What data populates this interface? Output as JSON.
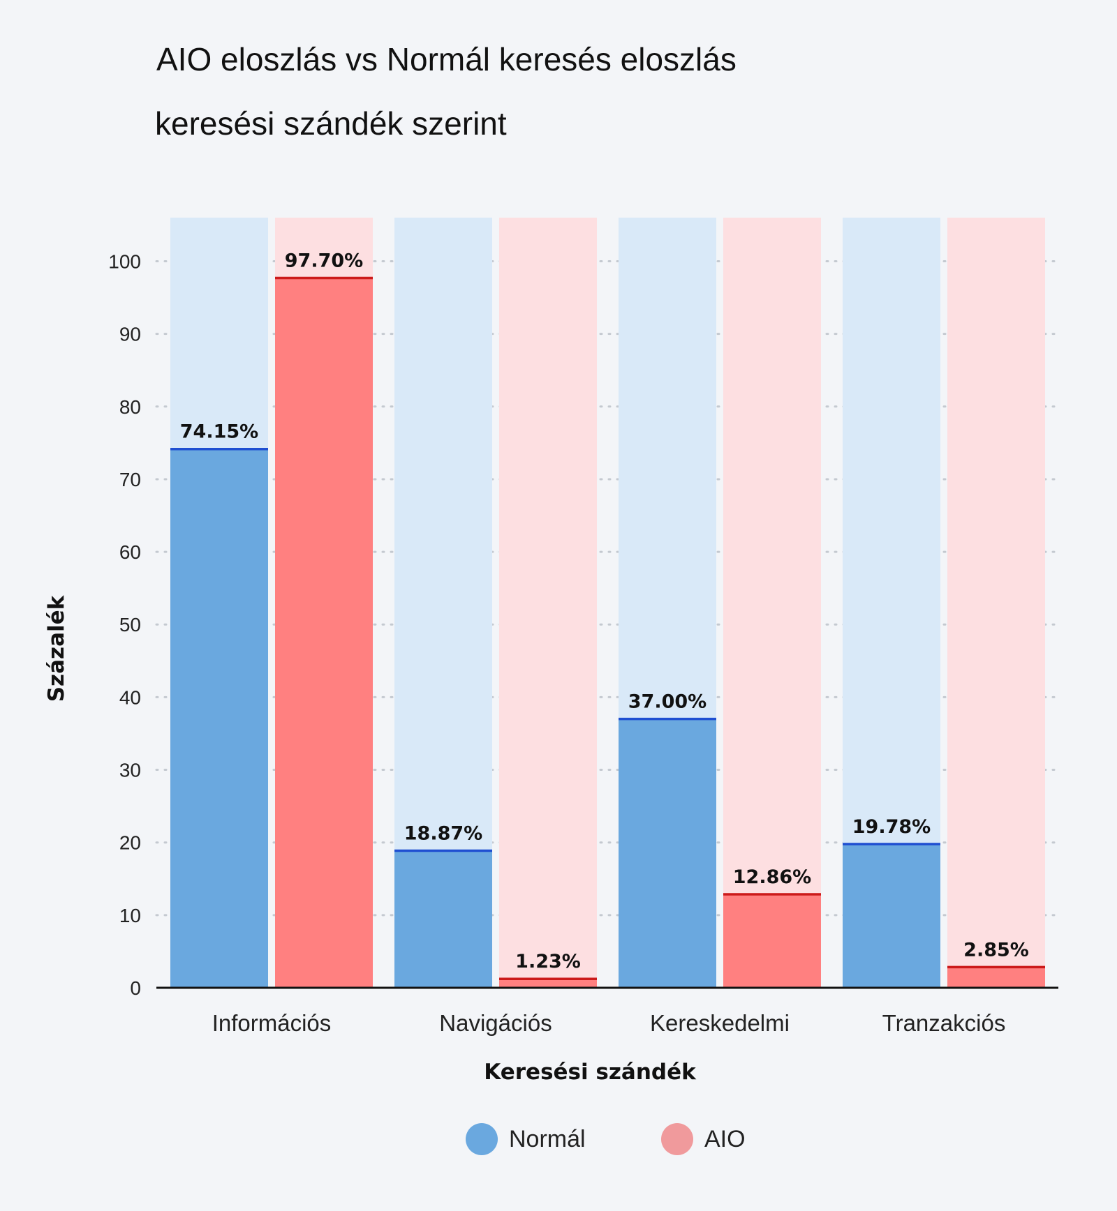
{
  "chart_data": {
    "type": "bar",
    "title": "AIO eloszlás vs Normál keresés eloszlás",
    "subtitle": "keresési szándék szerint",
    "xlabel": "Keresési szándék",
    "ylabel": "Százalék",
    "ylim": [
      0,
      106
    ],
    "yticks": [
      0,
      10,
      20,
      30,
      40,
      50,
      60,
      70,
      80,
      90,
      100
    ],
    "grid": true,
    "legend_position": "bottom-center",
    "categories": [
      "Információs",
      "Navigációs",
      "Kereskedelmi",
      "Tranzakciós"
    ],
    "series": [
      {
        "name": "Normál",
        "values": [
          74.15,
          18.87,
          37.0,
          19.78
        ],
        "labels": [
          "74.15%",
          "18.87%",
          "37.00%",
          "19.78%"
        ],
        "color": "#6aa8df",
        "background_color": "#d9e9f8",
        "edge_color": "#1f4fd1"
      },
      {
        "name": "AIO",
        "values": [
          97.7,
          1.23,
          12.86,
          2.85
        ],
        "labels": [
          "97.70%",
          "1.23%",
          "12.86%",
          "2.85%"
        ],
        "color": "#ff8080",
        "background_color": "#fddfe1",
        "edge_color": "#cc1a1a"
      }
    ]
  },
  "legend": {
    "normal_label": "Normál",
    "aio_label": "AIO",
    "normal_color": "#6aa8df",
    "aio_color": "#f09a9c"
  }
}
